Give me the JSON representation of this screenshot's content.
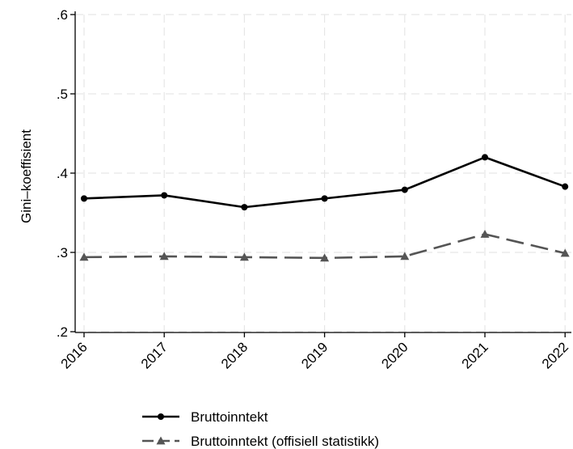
{
  "chart_data": {
    "type": "line",
    "title": "",
    "xlabel": "",
    "ylabel": "Gini–koeffisient",
    "x": [
      "2016",
      "2017",
      "2018",
      "2019",
      "2020",
      "2021",
      "2022"
    ],
    "ylim": [
      0.2,
      0.6
    ],
    "yticks": [
      {
        "value": 0.2,
        "label": ".2"
      },
      {
        "value": 0.3,
        "label": ".3"
      },
      {
        "value": 0.4,
        "label": ".4"
      },
      {
        "value": 0.5,
        "label": ".5"
      },
      {
        "value": 0.6,
        "label": ".6"
      }
    ],
    "grid": true,
    "legend_position": "bottom",
    "series": [
      {
        "name": "Bruttoinntekt",
        "values": [
          0.368,
          0.372,
          0.357,
          0.368,
          0.379,
          0.42,
          0.383
        ],
        "color": "#000000",
        "marker": "circle",
        "dash": "solid"
      },
      {
        "name": "Bruttoinntekt (offisiell statistikk)",
        "values": [
          0.294,
          0.295,
          0.294,
          0.293,
          0.295,
          0.323,
          0.299
        ],
        "color": "#555555",
        "marker": "triangle",
        "dash": "dashed"
      }
    ]
  }
}
